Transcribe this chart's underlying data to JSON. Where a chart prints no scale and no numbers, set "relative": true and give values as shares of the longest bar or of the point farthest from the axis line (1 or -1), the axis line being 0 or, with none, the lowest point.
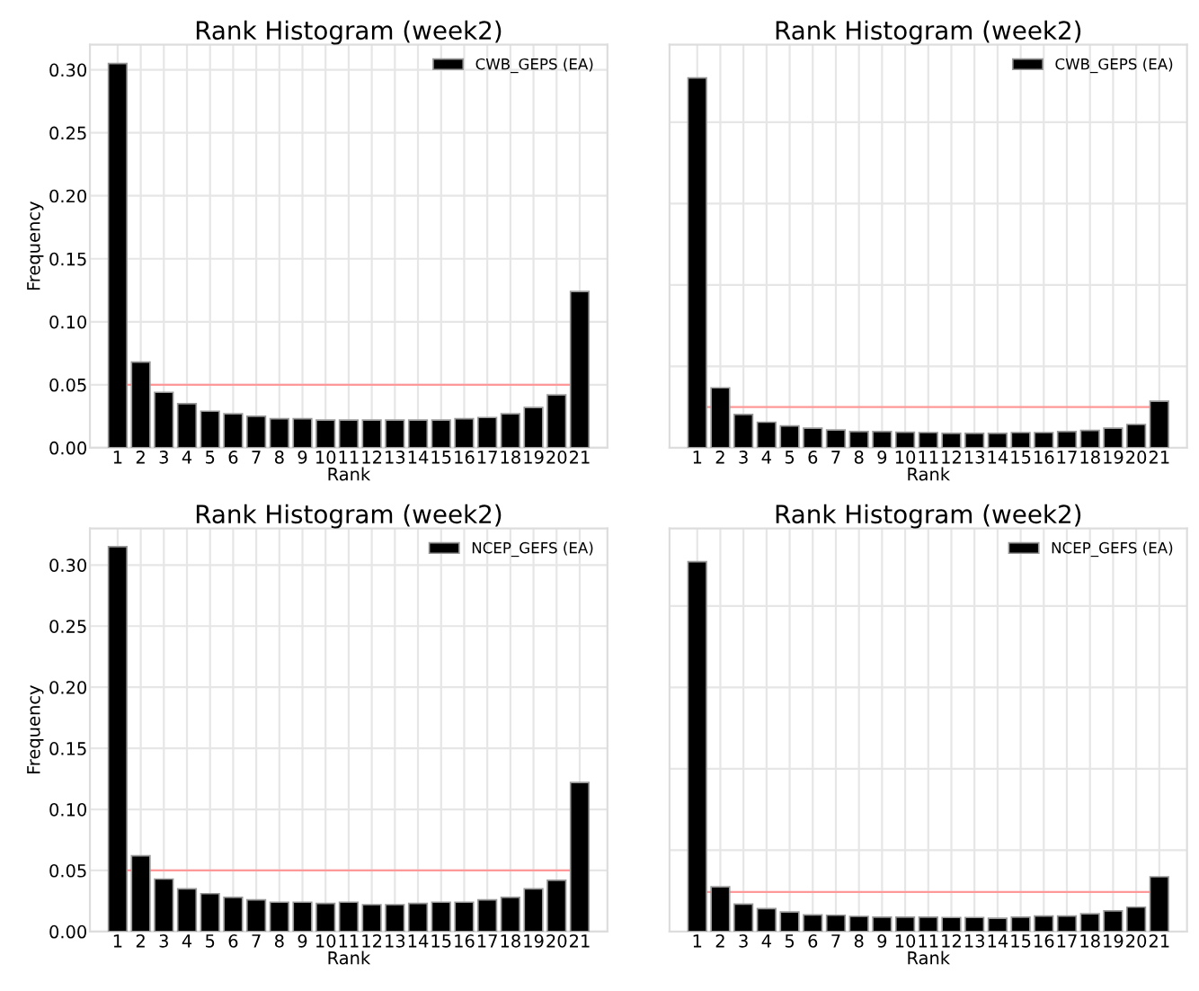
{
  "chart_data": [
    {
      "type": "bar",
      "title": "Rank Histogram (week2)",
      "xlabel": "Rank",
      "ylabel": "Frequency",
      "categories": [
        "1",
        "2",
        "3",
        "4",
        "5",
        "6",
        "7",
        "8",
        "9",
        "10",
        "11",
        "12",
        "13",
        "14",
        "15",
        "16",
        "17",
        "18",
        "19",
        "20",
        "21"
      ],
      "series": [
        {
          "name": "CWB_GEPS (EA)",
          "color": "#000000",
          "values": [
            0.305,
            0.068,
            0.044,
            0.035,
            0.029,
            0.027,
            0.025,
            0.023,
            0.023,
            0.022,
            0.022,
            0.022,
            0.022,
            0.022,
            0.022,
            0.023,
            0.024,
            0.027,
            0.032,
            0.042,
            0.124
          ]
        }
      ],
      "ylim": [
        0,
        0.32
      ],
      "yticks": [
        {
          "value": 0,
          "label": "0.00"
        },
        0.05,
        {
          "value": 0.1,
          "label": "0.10"
        },
        0.15,
        {
          "value": 0.2,
          "label": "0.20"
        },
        0.25,
        {
          "value": 0.3,
          "label": "0.30"
        }
      ],
      "ref_lines": [
        {
          "axis": "y",
          "value": 0.05,
          "color": "#ff9999"
        }
      ],
      "grid": true,
      "legend": "top right"
    },
    {
      "type": "bar",
      "title": "Rank Histogram (week2)",
      "xlabel": "Rank",
      "categories": [
        "1",
        "2",
        "3",
        "4",
        "5",
        "6",
        "7",
        "8",
        "9",
        "10",
        "11",
        "12",
        "13",
        "14",
        "15",
        "16",
        "17",
        "18",
        "19",
        "20",
        "21"
      ],
      "series": [
        {
          "name": "CWB_GEPS (EA)",
          "color": "#000000",
          "values": [
            1.0,
            0.162,
            0.09,
            0.069,
            0.059,
            0.053,
            0.048,
            0.044,
            0.044,
            0.042,
            0.041,
            0.039,
            0.039,
            0.039,
            0.041,
            0.041,
            0.044,
            0.047,
            0.053,
            0.063,
            0.126
          ]
        }
      ],
      "relative": true,
      "tick_labels": "x",
      "ref_lines": [
        {
          "axis": "y",
          "value": 0.11,
          "color": "#ff9999"
        }
      ],
      "grid": true,
      "legend": "top right"
    },
    {
      "type": "bar",
      "title": "Rank Histogram (week2)",
      "xlabel": "Rank",
      "ylabel": "Frequency",
      "categories": [
        "1",
        "2",
        "3",
        "4",
        "5",
        "6",
        "7",
        "8",
        "9",
        "10",
        "11",
        "12",
        "13",
        "14",
        "15",
        "16",
        "17",
        "18",
        "19",
        "20",
        "21"
      ],
      "series": [
        {
          "name": "NCEP_GEFS (EA)",
          "color": "#000000",
          "values": [
            0.315,
            0.062,
            0.043,
            0.035,
            0.031,
            0.028,
            0.026,
            0.024,
            0.024,
            0.023,
            0.024,
            0.022,
            0.022,
            0.023,
            0.024,
            0.024,
            0.026,
            0.028,
            0.035,
            0.042,
            0.122
          ]
        }
      ],
      "ylim": [
        0,
        0.33
      ],
      "yticks": [
        {
          "value": 0,
          "label": "0.00"
        },
        0.05,
        {
          "value": 0.1,
          "label": "0.10"
        },
        0.15,
        {
          "value": 0.2,
          "label": "0.20"
        },
        0.25,
        {
          "value": 0.3,
          "label": "0.30"
        }
      ],
      "ref_lines": [
        {
          "axis": "y",
          "value": 0.05,
          "color": "#ff9999"
        }
      ],
      "grid": true,
      "legend": "top right"
    },
    {
      "type": "bar",
      "title": "Rank Histogram (week2)",
      "xlabel": "Rank",
      "categories": [
        "1",
        "2",
        "3",
        "4",
        "5",
        "6",
        "7",
        "8",
        "9",
        "10",
        "11",
        "12",
        "13",
        "14",
        "15",
        "16",
        "17",
        "18",
        "19",
        "20",
        "21"
      ],
      "series": [
        {
          "name": "NCEP_GEFS (EA)",
          "color": "#000000",
          "values": [
            1.0,
            0.121,
            0.074,
            0.062,
            0.053,
            0.045,
            0.044,
            0.041,
            0.039,
            0.039,
            0.039,
            0.038,
            0.038,
            0.036,
            0.039,
            0.042,
            0.042,
            0.048,
            0.056,
            0.066,
            0.148
          ]
        }
      ],
      "relative": true,
      "tick_labels": "x",
      "ref_lines": [
        {
          "axis": "y",
          "value": 0.107,
          "color": "#ff9999"
        }
      ],
      "grid": true,
      "legend": "top right"
    }
  ]
}
